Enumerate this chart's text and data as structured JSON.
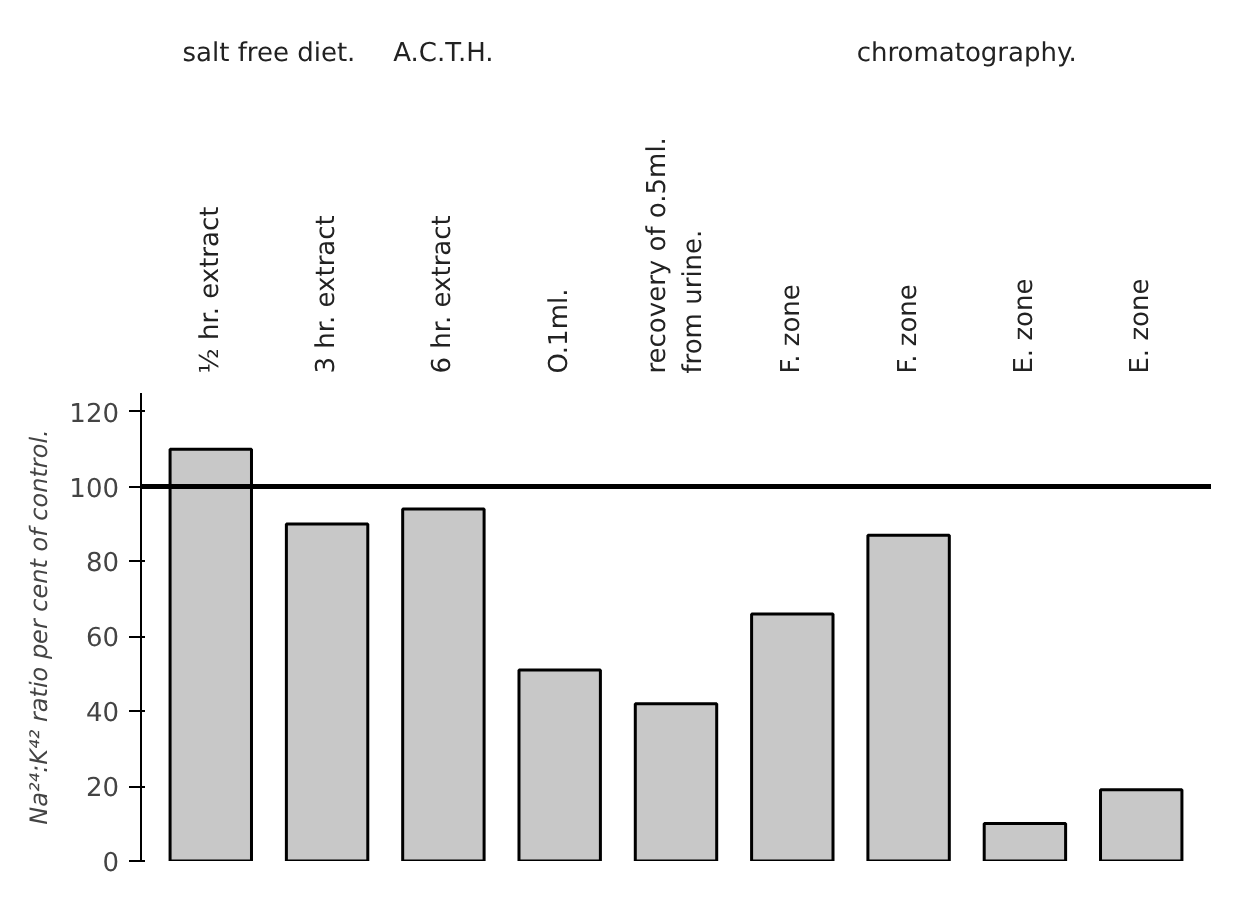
{
  "chart_data": {
    "type": "bar",
    "ylabel": "Na²⁴:K⁴² ratio per cent of control.",
    "categories": [
      "½ hr. extract",
      "3 hr. extract",
      "6 hr. extract",
      "O.1ml.",
      "recovery of o.5ml. from urine.",
      "F. zone",
      "F. zone",
      "E. zone",
      "E. zone"
    ],
    "values": [
      110,
      90,
      94,
      51,
      42,
      66,
      87,
      10,
      19
    ],
    "color": "#c8c8c8",
    "ylim": [
      0,
      125
    ],
    "yticks": [
      0,
      20,
      40,
      60,
      80,
      100,
      120
    ],
    "ref_lines": [
      {
        "axis": "y",
        "value": 100,
        "color": "#000000"
      }
    ],
    "annotations": [
      "salt free diet.",
      "A.C.T.H.",
      "chromatography."
    ],
    "grid": false
  }
}
